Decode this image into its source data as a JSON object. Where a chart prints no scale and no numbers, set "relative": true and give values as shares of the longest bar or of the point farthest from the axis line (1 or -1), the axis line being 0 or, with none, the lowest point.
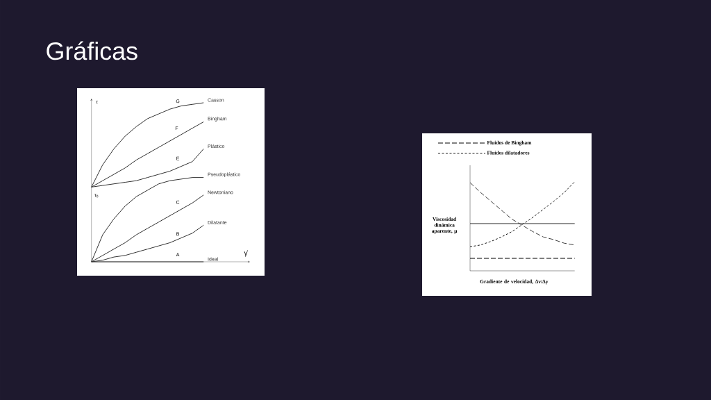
{
  "chart_data": [
    {
      "type": "line",
      "title": "Gráficas",
      "relative": true,
      "ylabel": "τ",
      "xlabel": "γ̇",
      "categories": [
        null,
        null,
        null,
        null,
        null,
        null,
        null,
        null,
        null,
        null,
        null
      ],
      "series": [
        {
          "name": "Casson",
          "color": "#303030",
          "values": [
            0.47,
            0.61,
            0.71,
            0.79,
            0.85,
            0.9,
            0.93,
            0.96,
            0.98,
            0.99,
            1.0
          ]
        },
        {
          "name": "Bingham",
          "color": "#303030",
          "values": [
            0.47,
            0.51,
            0.55,
            0.59,
            0.64,
            0.68,
            0.72,
            0.76,
            0.8,
            0.84,
            0.88
          ]
        },
        {
          "name": "Plástico",
          "color": "#303030",
          "values": [
            0.47,
            0.48,
            0.49,
            0.5,
            0.51,
            0.53,
            0.55,
            0.57,
            0.6,
            0.63,
            0.71
          ]
        },
        {
          "name": "Pseudoplástico",
          "color": "#303030",
          "values": [
            0.0,
            0.17,
            0.27,
            0.35,
            0.41,
            0.45,
            0.49,
            0.51,
            0.52,
            0.53,
            0.53
          ]
        },
        {
          "name": "Newtoniano",
          "color": "#303030",
          "values": [
            0.0,
            0.04,
            0.08,
            0.12,
            0.17,
            0.21,
            0.25,
            0.29,
            0.33,
            0.37,
            0.42
          ]
        },
        {
          "name": "Dilatante",
          "color": "#303030",
          "values": [
            0.0,
            0.01,
            0.03,
            0.04,
            0.06,
            0.08,
            0.1,
            0.12,
            0.15,
            0.18,
            0.23
          ]
        },
        {
          "name": "Ideal",
          "color": "#303030",
          "values": [
            0,
            0,
            0,
            0,
            0,
            0,
            0,
            0,
            0,
            0,
            0
          ]
        }
      ],
      "annotations": [
        "G",
        "F",
        "E",
        "C",
        "B",
        "A",
        "τ$_{0}$"
      ]
    },
    {
      "type": "line",
      "relative": true,
      "legend": "top left",
      "ylabel": "Viscosidad dinámica aparente, μ",
      "xlabel": "Gradiente de velocidad, Δv/Δy",
      "categories": [
        null,
        null,
        null,
        null,
        null,
        null,
        null,
        null,
        null,
        null,
        null
      ],
      "series": [
        {
          "name": "Fluidos de Bingham",
          "color": "#000000",
          "line_style": "dashed",
          "values": [
            0.14,
            0.14,
            0.14,
            0.14,
            0.14,
            0.14,
            0.14,
            0.14,
            0.14,
            0.14,
            0.14
          ]
        },
        {
          "name": "Fluidos dilatadores",
          "color": "#141414",
          "line_style": "dotted",
          "values": [
            0.27,
            0.29,
            0.33,
            0.38,
            0.44,
            0.52,
            0.6,
            0.69,
            0.78,
            0.88,
            1.0
          ]
        },
        {
          "color": "#282828",
          "line_style": "solid",
          "values": [
            0.53,
            0.53,
            0.53,
            0.53,
            0.53,
            0.53,
            0.53,
            0.53,
            0.53,
            0.53,
            0.53
          ]
        },
        {
          "color": "#3c3c3c",
          "line_style": "dashed",
          "values": [
            0.99,
            0.88,
            0.78,
            0.68,
            0.58,
            0.51,
            0.44,
            0.38,
            0.35,
            0.31,
            0.29
          ]
        }
      ]
    }
  ]
}
